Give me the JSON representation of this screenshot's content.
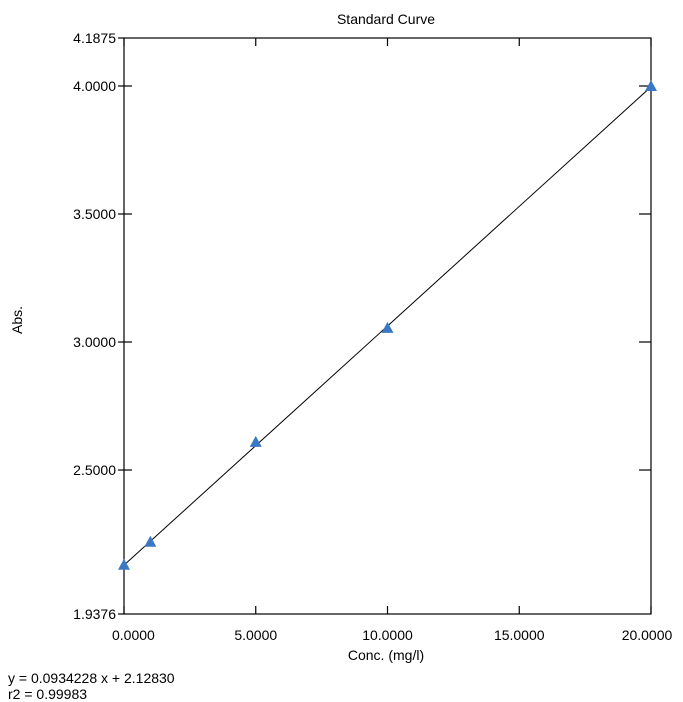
{
  "chart_data": {
    "type": "scatter",
    "title": "Standard Curve",
    "xlabel": "Conc. (mg/l)",
    "ylabel": "Abs.",
    "xlim": [
      0,
      20
    ],
    "ylim": [
      1.9376,
      4.1875
    ],
    "x_ticks": [
      0,
      5,
      10,
      15,
      20
    ],
    "x_tick_labels": [
      "0.0000",
      "5.0000",
      "10.0000",
      "15.0000",
      "20.0000"
    ],
    "y_ticks": [
      1.9376,
      2.5,
      3.0,
      3.5,
      4.0,
      4.1875
    ],
    "y_tick_labels": [
      "1.9376",
      "2.5000",
      "3.0000",
      "3.5000",
      "4.0000",
      "4.1875"
    ],
    "series": [
      {
        "marker": "triangle",
        "color": "#3b78c4",
        "points": [
          {
            "x": 0.0,
            "y": 2.13
          },
          {
            "x": 1.0,
            "y": 2.22
          },
          {
            "x": 5.0,
            "y": 2.61
          },
          {
            "x": 10.0,
            "y": 3.055
          },
          {
            "x": 20.0,
            "y": 4.0
          }
        ]
      }
    ],
    "fit_line": {
      "slope": 0.0934228,
      "intercept": 2.1283,
      "x_range": [
        0,
        20
      ],
      "color": "#000000"
    },
    "grid": false
  },
  "equation": {
    "line1": "y = 0.0934228 x + 2.12830",
    "line2": "r2 = 0.99983"
  }
}
